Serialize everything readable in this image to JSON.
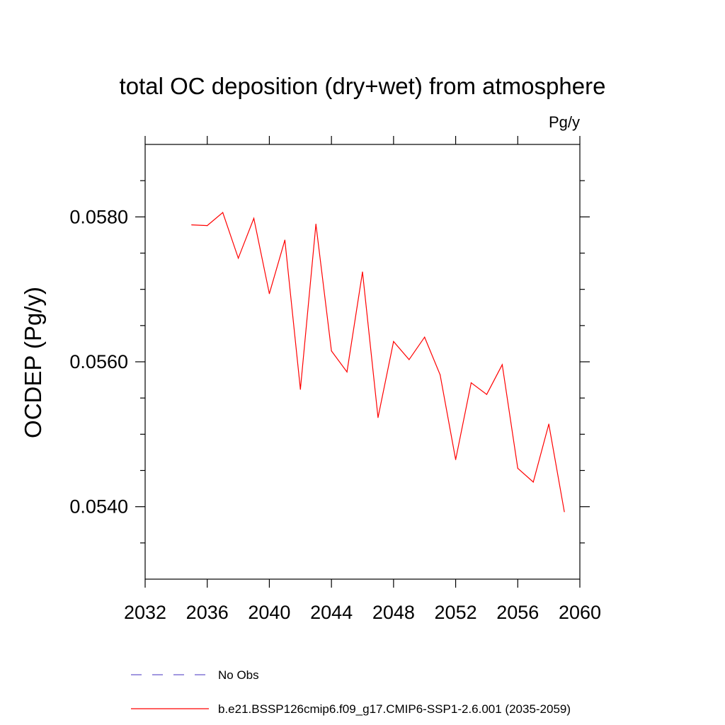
{
  "chart_data": {
    "type": "line",
    "title": "total OC deposition (dry+wet) from atmosphere",
    "units_label": "Pg/y",
    "xlabel": "",
    "ylabel": "OCDEP  (Pg/y)",
    "xlim": [
      2032,
      2060
    ],
    "ylim": [
      0.053,
      0.059
    ],
    "x_ticks": [
      2032,
      2036,
      2040,
      2044,
      2048,
      2052,
      2056,
      2060
    ],
    "x_tick_labels": [
      "2032",
      "2036",
      "2040",
      "2044",
      "2048",
      "2052",
      "2056",
      "2060"
    ],
    "y_ticks": [
      0.054,
      0.056,
      0.058
    ],
    "y_tick_labels": [
      "0.0540",
      "0.0560",
      "0.0580"
    ],
    "grid": false,
    "legend_position": "bottom",
    "series": [
      {
        "name": "b.e21.BSSP126cmip6.f09_g17.CMIP6-SSP1-2.6.001 (2035-2059)",
        "color": "#ff0000",
        "dash": "solid",
        "x": [
          2035,
          2036,
          2037,
          2038,
          2039,
          2040,
          2041,
          2042,
          2043,
          2044,
          2045,
          2046,
          2047,
          2048,
          2049,
          2050,
          2051,
          2052,
          2053,
          2054,
          2055,
          2056,
          2057,
          2058,
          2059
        ],
        "y": [
          0.05789,
          0.05788,
          0.05806,
          0.05743,
          0.05798,
          0.05694,
          0.05768,
          0.05562,
          0.0579,
          0.05615,
          0.05586,
          0.05724,
          0.05523,
          0.05628,
          0.05603,
          0.05634,
          0.05582,
          0.05465,
          0.05571,
          0.05555,
          0.05596,
          0.05453,
          0.05434,
          0.05514,
          0.05393
        ]
      }
    ],
    "legend": [
      {
        "label": "No Obs",
        "color": "#6a5acd",
        "dash": "dashed"
      },
      {
        "label": "b.e21.BSSP126cmip6.f09_g17.CMIP6-SSP1-2.6.001 (2035-2059)",
        "color": "#ff0000",
        "dash": "solid"
      }
    ]
  }
}
